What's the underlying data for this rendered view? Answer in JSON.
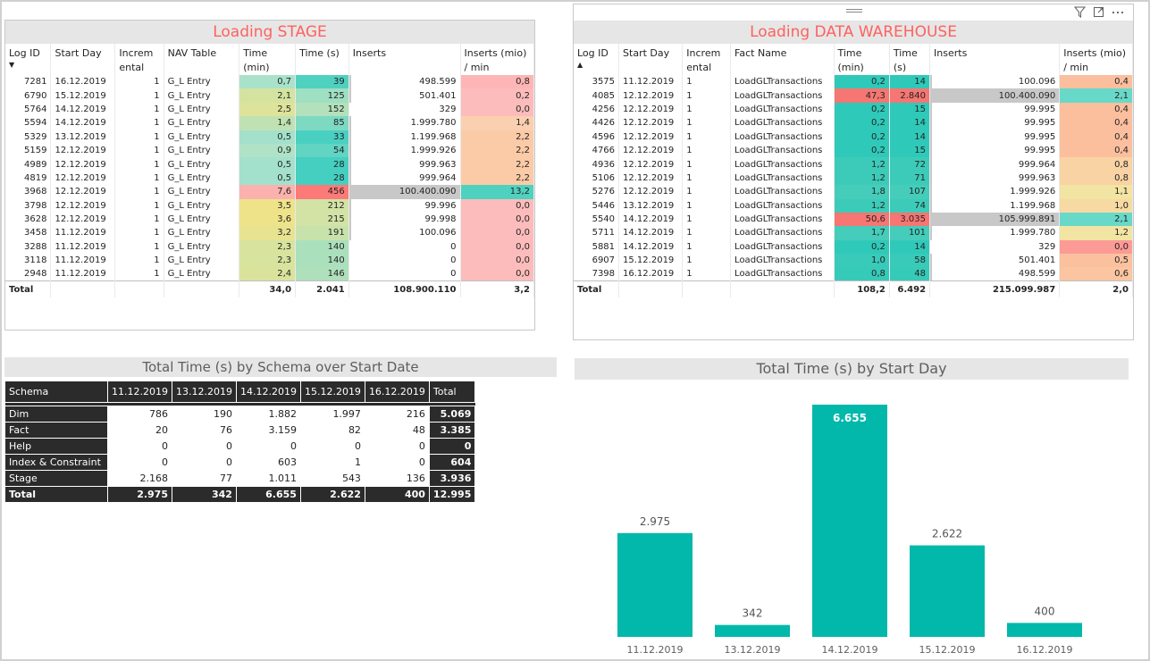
{
  "stage": {
    "title": "Loading STAGE",
    "headers": [
      "Log ID",
      "Start Day",
      "Increm ental",
      "NAV Table",
      "Time (min)",
      "Time (s)",
      "Inserts",
      "Inserts (mio) / min"
    ],
    "rows": [
      {
        "log": "7281",
        "day": "16.12.2019",
        "inc": "1",
        "tbl": "G_L Entry",
        "min": "0,7",
        "sec": "39",
        "ins": "498.599",
        "rate": "0,8",
        "c_min": "#a8e2cb",
        "c_sec": "#4fd1c0",
        "c_rate": "#fdb5b5"
      },
      {
        "log": "6790",
        "day": "15.12.2019",
        "inc": "1",
        "tbl": "G_L Entry",
        "min": "2,1",
        "sec": "125",
        "ins": "501.401",
        "rate": "0,2",
        "c_min": "#d4e3a0",
        "c_sec": "#9fdfc2",
        "c_rate": "#fdbcbc"
      },
      {
        "log": "5764",
        "day": "14.12.2019",
        "inc": "1",
        "tbl": "G_L Entry",
        "min": "2,5",
        "sec": "152",
        "ins": "329",
        "rate": "0,0",
        "c_min": "#dde39a",
        "c_sec": "#b3e1bb",
        "c_rate": "#fdbcbc"
      },
      {
        "log": "5594",
        "day": "14.12.2019",
        "inc": "1",
        "tbl": "G_L Entry",
        "min": "1,4",
        "sec": "85",
        "ins": "1.999.780",
        "rate": "1,4",
        "c_min": "#c0e2b2",
        "c_sec": "#7ed9c3",
        "c_rate": "#fbd0b0"
      },
      {
        "log": "5329",
        "day": "13.12.2019",
        "inc": "1",
        "tbl": "G_L Entry",
        "min": "0,5",
        "sec": "33",
        "ins": "1.199.968",
        "rate": "2,2",
        "c_min": "#a3e1cc",
        "c_sec": "#49d0c1",
        "c_rate": "#fbcba8"
      },
      {
        "log": "5159",
        "day": "12.12.2019",
        "inc": "1",
        "tbl": "G_L Entry",
        "min": "0,9",
        "sec": "54",
        "ins": "1.999.926",
        "rate": "2,2",
        "c_min": "#afe2c7",
        "c_sec": "#62d4c2",
        "c_rate": "#fbcba8"
      },
      {
        "log": "4989",
        "day": "12.12.2019",
        "inc": "1",
        "tbl": "G_L Entry",
        "min": "0,5",
        "sec": "28",
        "ins": "999.963",
        "rate": "2,2",
        "c_min": "#a3e1cc",
        "c_sec": "#44cfc1",
        "c_rate": "#fbcba8"
      },
      {
        "log": "4819",
        "day": "12.12.2019",
        "inc": "1",
        "tbl": "G_L Entry",
        "min": "0,5",
        "sec": "28",
        "ins": "999.964",
        "rate": "2,2",
        "c_min": "#a3e1cc",
        "c_sec": "#44cfc1",
        "c_rate": "#fbcba8"
      },
      {
        "log": "3968",
        "day": "12.12.2019",
        "inc": "1",
        "tbl": "G_L Entry",
        "min": "7,6",
        "sec": "456",
        "ins": "100.400.090",
        "rate": "13,2",
        "c_min": "#fbb1ae",
        "c_sec": "#fc7a77",
        "c_rate": "#4fd1c0"
      },
      {
        "log": "3798",
        "day": "12.12.2019",
        "inc": "1",
        "tbl": "G_L Entry",
        "min": "3,5",
        "sec": "212",
        "ins": "99.996",
        "rate": "0,0",
        "c_min": "#efe38a",
        "c_sec": "#d2e3a5",
        "c_rate": "#fdbcbc"
      },
      {
        "log": "3628",
        "day": "12.12.2019",
        "inc": "1",
        "tbl": "G_L Entry",
        "min": "3,6",
        "sec": "215",
        "ins": "99.998",
        "rate": "0,0",
        "c_min": "#efe38a",
        "c_sec": "#d2e3a5",
        "c_rate": "#fdbcbc"
      },
      {
        "log": "3458",
        "day": "11.12.2019",
        "inc": "1",
        "tbl": "G_L Entry",
        "min": "3,2",
        "sec": "191",
        "ins": "100.096",
        "rate": "0,0",
        "c_min": "#e8e390",
        "c_sec": "#c8e2ac",
        "c_rate": "#fdbcbc"
      },
      {
        "log": "3288",
        "day": "11.12.2019",
        "inc": "1",
        "tbl": "G_L Entry",
        "min": "2,3",
        "sec": "140",
        "ins": "0",
        "rate": "0,0",
        "c_min": "#d8e39d",
        "c_sec": "#abe0bd",
        "c_rate": "#fdbcbc"
      },
      {
        "log": "3118",
        "day": "11.12.2019",
        "inc": "1",
        "tbl": "G_L Entry",
        "min": "2,3",
        "sec": "140",
        "ins": "0",
        "rate": "0,0",
        "c_min": "#d8e39d",
        "c_sec": "#abe0bd",
        "c_rate": "#fdbcbc"
      },
      {
        "log": "2948",
        "day": "11.12.2019",
        "inc": "1",
        "tbl": "G_L Entry",
        "min": "2,4",
        "sec": "146",
        "ins": "0",
        "rate": "0,0",
        "c_min": "#dae39c",
        "c_sec": "#afe0bc",
        "c_rate": "#fdbcbc"
      }
    ],
    "total": {
      "label": "Total",
      "min": "34,0",
      "sec": "2.041",
      "ins": "108.900.110",
      "rate": "3,2"
    }
  },
  "dwh": {
    "title": "Loading DATA WAREHOUSE",
    "headers": [
      "Log ID",
      "Start Day",
      "Increm ental",
      "Fact Name",
      "Time (min)",
      "Time (s)",
      "Inserts",
      "Inserts (mio) / min"
    ],
    "rows": [
      {
        "log": "3575",
        "day": "11.12.2019",
        "inc": "1",
        "tbl": "LoadGLTransactions",
        "min": "0,2",
        "sec": "14",
        "ins": "100.096",
        "rate": "0,4",
        "c_min": "#2fc9b9",
        "c_sec": "#2fc9b9",
        "c_rate": "#fbbf9e"
      },
      {
        "log": "4085",
        "day": "12.12.2019",
        "inc": "1",
        "tbl": "LoadGLTransactions",
        "min": "47,3",
        "sec": "2.840",
        "ins": "100.400.090",
        "rate": "2,1",
        "c_min": "#f57672",
        "c_sec": "#f57672",
        "c_rate": "#68d8c8"
      },
      {
        "log": "4256",
        "day": "12.12.2019",
        "inc": "1",
        "tbl": "LoadGLTransactions",
        "min": "0,2",
        "sec": "15",
        "ins": "99.995",
        "rate": "0,4",
        "c_min": "#2fc9b9",
        "c_sec": "#2fc9b9",
        "c_rate": "#fbbf9e"
      },
      {
        "log": "4426",
        "day": "12.12.2019",
        "inc": "1",
        "tbl": "LoadGLTransactions",
        "min": "0,2",
        "sec": "14",
        "ins": "99.995",
        "rate": "0,4",
        "c_min": "#2fc9b9",
        "c_sec": "#2fc9b9",
        "c_rate": "#fbbf9e"
      },
      {
        "log": "4596",
        "day": "12.12.2019",
        "inc": "1",
        "tbl": "LoadGLTransactions",
        "min": "0,2",
        "sec": "14",
        "ins": "99.995",
        "rate": "0,4",
        "c_min": "#2fc9b9",
        "c_sec": "#2fc9b9",
        "c_rate": "#fbbf9e"
      },
      {
        "log": "4766",
        "day": "12.12.2019",
        "inc": "1",
        "tbl": "LoadGLTransactions",
        "min": "0,2",
        "sec": "15",
        "ins": "99.995",
        "rate": "0,4",
        "c_min": "#2fc9b9",
        "c_sec": "#2fc9b9",
        "c_rate": "#fbbf9e"
      },
      {
        "log": "4936",
        "day": "12.12.2019",
        "inc": "1",
        "tbl": "LoadGLTransactions",
        "min": "1,2",
        "sec": "72",
        "ins": "999.964",
        "rate": "0,8",
        "c_min": "#3dcbb9",
        "c_sec": "#3dcbb9",
        "c_rate": "#f9d3a4"
      },
      {
        "log": "5106",
        "day": "12.12.2019",
        "inc": "1",
        "tbl": "LoadGLTransactions",
        "min": "1,2",
        "sec": "71",
        "ins": "999.963",
        "rate": "0,8",
        "c_min": "#3dcbb9",
        "c_sec": "#3dcbb9",
        "c_rate": "#f9d3a4"
      },
      {
        "log": "5276",
        "day": "12.12.2019",
        "inc": "1",
        "tbl": "LoadGLTransactions",
        "min": "1,8",
        "sec": "107",
        "ins": "1.999.926",
        "rate": "1,1",
        "c_min": "#45ccba",
        "c_sec": "#45ccba",
        "c_rate": "#f2e4a2"
      },
      {
        "log": "5446",
        "day": "13.12.2019",
        "inc": "1",
        "tbl": "LoadGLTransactions",
        "min": "1,2",
        "sec": "74",
        "ins": "1.199.968",
        "rate": "1,0",
        "c_min": "#3dcbb9",
        "c_sec": "#3dcbb9",
        "c_rate": "#f7d9a3"
      },
      {
        "log": "5540",
        "day": "14.12.2019",
        "inc": "1",
        "tbl": "LoadGLTransactions",
        "min": "50,6",
        "sec": "3.035",
        "ins": "105.999.891",
        "rate": "2,1",
        "c_min": "#f57672",
        "c_sec": "#f57672",
        "c_rate": "#68d8c8"
      },
      {
        "log": "5711",
        "day": "14.12.2019",
        "inc": "1",
        "tbl": "LoadGLTransactions",
        "min": "1,7",
        "sec": "101",
        "ins": "1.999.780",
        "rate": "1,2",
        "c_min": "#45ccba",
        "c_sec": "#45ccba",
        "c_rate": "#f2e4a2"
      },
      {
        "log": "5881",
        "day": "14.12.2019",
        "inc": "1",
        "tbl": "LoadGLTransactions",
        "min": "0,2",
        "sec": "14",
        "ins": "329",
        "rate": "0,0",
        "c_min": "#2fc9b9",
        "c_sec": "#2fc9b9",
        "c_rate": "#fc9a96"
      },
      {
        "log": "6907",
        "day": "15.12.2019",
        "inc": "1",
        "tbl": "LoadGLTransactions",
        "min": "1,0",
        "sec": "58",
        "ins": "501.401",
        "rate": "0,5",
        "c_min": "#3acab9",
        "c_sec": "#3acab9",
        "c_rate": "#fbc19f"
      },
      {
        "log": "7398",
        "day": "16.12.2019",
        "inc": "1",
        "tbl": "LoadGLTransactions",
        "min": "0,8",
        "sec": "48",
        "ins": "498.599",
        "rate": "0,6",
        "c_min": "#36cab9",
        "c_sec": "#36cab9",
        "c_rate": "#fac5a0"
      }
    ],
    "total": {
      "label": "Total",
      "min": "108,2",
      "sec": "6.492",
      "ins": "215.099.987",
      "rate": "2,0"
    }
  },
  "matrix": {
    "title": "Total Time (s) by Schema over Start Date",
    "corner": "Schema",
    "columns": [
      "11.12.2019",
      "13.12.2019",
      "14.12.2019",
      "15.12.2019",
      "16.12.2019",
      "Total"
    ],
    "rows": [
      {
        "label": "Dim",
        "values": [
          "786",
          "190",
          "1.882",
          "1.997",
          "216"
        ],
        "total": "5.069"
      },
      {
        "label": "Fact",
        "values": [
          "20",
          "76",
          "3.159",
          "82",
          "48"
        ],
        "total": "3.385"
      },
      {
        "label": "Help",
        "values": [
          "0",
          "0",
          "0",
          "0",
          "0"
        ],
        "total": "0"
      },
      {
        "label": "Index & Constraint",
        "values": [
          "0",
          "0",
          "603",
          "1",
          "0"
        ],
        "total": "604"
      },
      {
        "label": "Stage",
        "values": [
          "2.168",
          "77",
          "1.011",
          "543",
          "136"
        ],
        "total": "3.936"
      }
    ],
    "total": {
      "label": "Total",
      "values": [
        "2.975",
        "342",
        "6.655",
        "2.622",
        "400"
      ],
      "total": "12.995"
    }
  },
  "chart_title": "Total Time (s) by Start Day",
  "chart_data": {
    "type": "bar",
    "title": "Total Time (s) by Start Day",
    "categories": [
      "11.12.2019",
      "13.12.2019",
      "14.12.2019",
      "15.12.2019",
      "16.12.2019"
    ],
    "values": [
      2975,
      342,
      6655,
      2622,
      400
    ],
    "labels": [
      "2.975",
      "342",
      "6.655",
      "2.622",
      "400"
    ],
    "xlabel": "",
    "ylabel": "",
    "ylim": [
      0,
      6655
    ],
    "color": "#01b8aa"
  },
  "colors": {
    "accent": "#01b8aa",
    "stage_title": "#fd625e",
    "inserts_bar": "#c8c8c8"
  },
  "icons": {
    "filter": "filter-icon",
    "focus": "focus-mode-icon",
    "more": "more-options-icon"
  }
}
